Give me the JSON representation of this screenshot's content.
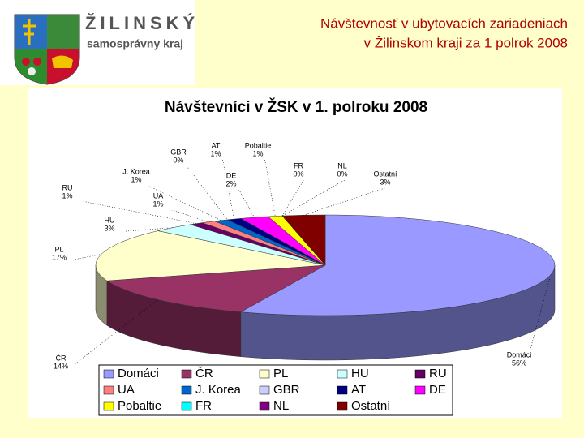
{
  "header": {
    "logo_title": "ŽILINSKÝ",
    "logo_subtitle": "samosprávny kraj",
    "title": [
      "Návštevnosť v ubytovacích zariadeniach",
      "v Žilinskom kraji za 1 polrok 2008"
    ]
  },
  "chart_data": {
    "type": "pie3d",
    "title": "Návštevníci v ŽSK v 1. polroku 2008",
    "categories": [
      "Domáci",
      "ČR",
      "PL",
      "HU",
      "RU",
      "UA",
      "J. Korea",
      "GBR",
      "AT",
      "DE",
      "Pobaltie",
      "FR",
      "NL",
      "Ostatní"
    ],
    "values": [
      56,
      14,
      17,
      3,
      1,
      1,
      1,
      0,
      1,
      2,
      1,
      0,
      0,
      3
    ],
    "value_labels": [
      "56%",
      "14%",
      "17%",
      "3%",
      "1%",
      "1%",
      "1%",
      "0%",
      "1%",
      "2%",
      "1%",
      "0%",
      "0%",
      "3%"
    ],
    "colors": [
      "#9999ff",
      "#993366",
      "#ffffcc",
      "#ccffff",
      "#660066",
      "#ff8080",
      "#0066cc",
      "#ccccff",
      "#000080",
      "#ff00ff",
      "#ffff00",
      "#00ffff",
      "#800080",
      "#800000"
    ],
    "legend": "bottom"
  }
}
